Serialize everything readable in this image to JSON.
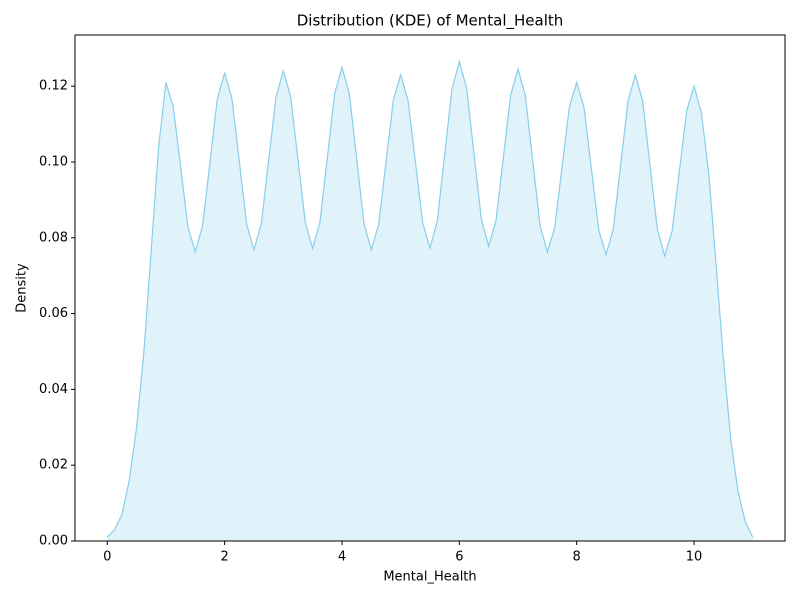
{
  "chart_data": {
    "type": "area",
    "title": "Distribution (KDE) of Mental_Health",
    "x_label": "Mental_Health",
    "y_label": "Density",
    "x": [
      0,
      0.125,
      0.25,
      0.375,
      0.5,
      0.625,
      0.75,
      0.875,
      1,
      1.125,
      1.25,
      1.375,
      1.5,
      1.625,
      1.75,
      1.875,
      2,
      2.125,
      2.25,
      2.375,
      2.5,
      2.625,
      2.75,
      2.875,
      3,
      3.125,
      3.25,
      3.375,
      3.5,
      3.625,
      3.75,
      3.875,
      4,
      4.125,
      4.25,
      4.375,
      4.5,
      4.625,
      4.75,
      4.875,
      5,
      5.125,
      5.25,
      5.375,
      5.5,
      5.625,
      5.75,
      5.875,
      6,
      6.125,
      6.25,
      6.375,
      6.5,
      6.625,
      6.75,
      6.875,
      7,
      7.125,
      7.25,
      7.375,
      7.5,
      7.625,
      7.75,
      7.875,
      8,
      8.125,
      8.25,
      8.375,
      8.5,
      8.625,
      8.75,
      8.875,
      9,
      9.125,
      9.25,
      9.375,
      9.5,
      9.625,
      9.75,
      9.875,
      10,
      10.125,
      10.25,
      10.375,
      10.5,
      10.625,
      10.75,
      10.875,
      11
    ],
    "values": [
      0.001,
      0.003,
      0.007,
      0.016,
      0.03,
      0.05,
      0.077,
      0.104,
      0.121,
      0.1145,
      0.0987,
      0.0828,
      0.0763,
      0.0832,
      0.0999,
      0.1166,
      0.1235,
      0.1167,
      0.1002,
      0.0836,
      0.0768,
      0.0837,
      0.1004,
      0.1171,
      0.124,
      0.1172,
      0.1006,
      0.084,
      0.0772,
      0.0842,
      0.1011,
      0.118,
      0.125,
      0.118,
      0.1009,
      0.0838,
      0.0768,
      0.0835,
      0.0999,
      0.1163,
      0.123,
      0.1163,
      0.1002,
      0.084,
      0.0773,
      0.0845,
      0.1019,
      0.1193,
      0.1265,
      0.1194,
      0.1022,
      0.0849,
      0.0778,
      0.0846,
      0.1012,
      0.1177,
      0.1245,
      0.1175,
      0.1004,
      0.0833,
      0.0762,
      0.0827,
      0.0986,
      0.1145,
      0.121,
      0.1144,
      0.0983,
      0.0821,
      0.0755,
      0.0824,
      0.0993,
      0.1161,
      0.123,
      0.116,
      0.0991,
      0.0822,
      0.0752,
      0.0817,
      0.0976,
      0.1135,
      0.12,
      0.113,
      0.097,
      0.073,
      0.048,
      0.027,
      0.013,
      0.005,
      0.001
    ],
    "color": "#87ceeb",
    "xlim": [
      -0.55,
      11.55
    ],
    "ylim": [
      0,
      0.1335
    ],
    "xticks": [
      0,
      2,
      4,
      6,
      8,
      10
    ],
    "yticks": [
      {
        "value": 0,
        "label": "0.00"
      },
      {
        "value": 0.02,
        "label": "0.02"
      },
      {
        "value": 0.04,
        "label": "0.04"
      },
      {
        "value": 0.06,
        "label": "0.06"
      },
      {
        "value": 0.08,
        "label": "0.08"
      },
      {
        "value": 0.1,
        "label": "0.10"
      },
      {
        "value": 0.12,
        "label": "0.12"
      }
    ],
    "grid": false
  }
}
